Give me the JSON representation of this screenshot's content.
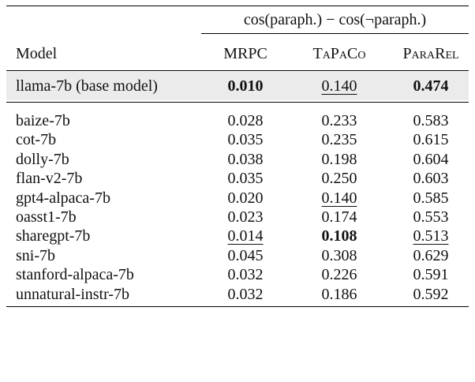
{
  "table": {
    "group_header": "cos(paraph.) − cos(¬paraph.)",
    "columns": [
      "Model",
      "MRPC",
      "TaPaCo",
      "ParaRel"
    ],
    "base_row": {
      "model": "llama-7b (base model)",
      "cells": [
        {
          "text": "0.010",
          "bold": true
        },
        {
          "text": "0.140",
          "underline": true
        },
        {
          "text": "0.474",
          "bold": true
        }
      ]
    },
    "rows": [
      {
        "model": "baize-7b",
        "cells": [
          {
            "text": "0.028"
          },
          {
            "text": "0.233"
          },
          {
            "text": "0.583"
          }
        ]
      },
      {
        "model": "cot-7b",
        "cells": [
          {
            "text": "0.035"
          },
          {
            "text": "0.235"
          },
          {
            "text": "0.615"
          }
        ]
      },
      {
        "model": "dolly-7b",
        "cells": [
          {
            "text": "0.038"
          },
          {
            "text": "0.198"
          },
          {
            "text": "0.604"
          }
        ]
      },
      {
        "model": "flan-v2-7b",
        "cells": [
          {
            "text": "0.035"
          },
          {
            "text": "0.250"
          },
          {
            "text": "0.603"
          }
        ]
      },
      {
        "model": "gpt4-alpaca-7b",
        "cells": [
          {
            "text": "0.020"
          },
          {
            "text": "0.140",
            "underline": true
          },
          {
            "text": "0.585"
          }
        ]
      },
      {
        "model": "oasst1-7b",
        "cells": [
          {
            "text": "0.023"
          },
          {
            "text": "0.174"
          },
          {
            "text": "0.553"
          }
        ]
      },
      {
        "model": "sharegpt-7b",
        "cells": [
          {
            "text": "0.014",
            "underline": true
          },
          {
            "text": "0.108",
            "bold": true
          },
          {
            "text": "0.513",
            "underline": true
          }
        ]
      },
      {
        "model": "sni-7b",
        "cells": [
          {
            "text": "0.045"
          },
          {
            "text": "0.308"
          },
          {
            "text": "0.629"
          }
        ]
      },
      {
        "model": "stanford-alpaca-7b",
        "cells": [
          {
            "text": "0.032"
          },
          {
            "text": "0.226"
          },
          {
            "text": "0.591"
          }
        ]
      },
      {
        "model": "unnatural-instr-7b",
        "cells": [
          {
            "text": "0.032"
          },
          {
            "text": "0.186"
          },
          {
            "text": "0.592"
          }
        ]
      }
    ]
  }
}
